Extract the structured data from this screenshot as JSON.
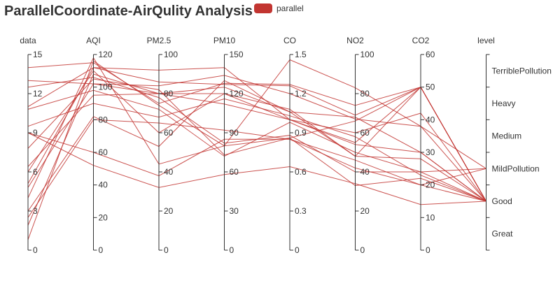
{
  "colors": {
    "series": "#c23531",
    "axis": "#333333",
    "text": "#333333"
  },
  "chart_data": {
    "type": "parallel",
    "title": "ParallelCoordinate-AirQulity Analysis",
    "legend": [
      "parallel"
    ],
    "legend_placement": "top",
    "axes": [
      {
        "name": "data",
        "type": "value",
        "min": 0,
        "max": 15,
        "ticks": [
          0,
          3,
          6,
          9,
          12,
          15
        ]
      },
      {
        "name": "AQI",
        "type": "value",
        "min": 0,
        "max": 120,
        "ticks": [
          0,
          20,
          40,
          60,
          80,
          100,
          120
        ]
      },
      {
        "name": "PM2.5",
        "type": "value",
        "min": 0,
        "max": 100,
        "ticks": [
          0,
          20,
          40,
          60,
          80,
          100
        ]
      },
      {
        "name": "PM10",
        "type": "value",
        "min": 0,
        "max": 150,
        "ticks": [
          0,
          30,
          60,
          90,
          120,
          150
        ]
      },
      {
        "name": "CO",
        "type": "value",
        "min": 0,
        "max": 1.5,
        "ticks": [
          0,
          0.3,
          0.6,
          0.9,
          1.2,
          1.5
        ]
      },
      {
        "name": "NO2",
        "type": "value",
        "min": 0,
        "max": 100,
        "ticks": [
          0,
          20,
          40,
          60,
          80,
          100
        ]
      },
      {
        "name": "CO2",
        "type": "value",
        "min": 0,
        "max": 60,
        "ticks": [
          0,
          10,
          20,
          30,
          40,
          50,
          60
        ]
      },
      {
        "name": "level",
        "type": "category",
        "categories": [
          "Great",
          "Good",
          "MildPollution",
          "Medium",
          "Heavy",
          "TerriblePollution"
        ]
      }
    ],
    "series": [
      {
        "values": [
          14,
          115,
          75,
          128,
          1.27,
          74,
          50,
          "Good"
        ]
      },
      {
        "values": [
          12.5,
          106,
          78,
          82,
          0.88,
          40,
          24,
          "Good"
        ]
      },
      {
        "values": [
          7.8,
          105,
          82,
          73,
          0.86,
          33,
          22,
          "Good"
        ]
      },
      {
        "values": [
          10.8,
          98,
          72,
          72,
          0.98,
          50,
          24,
          "MildPollution"
        ]
      },
      {
        "values": [
          3,
          82,
          53,
          130,
          1.06,
          48,
          28,
          "Good"
        ]
      },
      {
        "values": [
          6.4,
          95,
          80,
          125,
          1.06,
          68,
          30,
          "Good"
        ]
      },
      {
        "values": [
          5.1,
          112,
          86,
          127,
          1.26,
          69,
          50,
          "Good"
        ]
      },
      {
        "values": [
          9.5,
          90,
          68,
          116,
          1.03,
          58,
          23,
          "Good"
        ]
      },
      {
        "values": [
          1.9,
          108,
          80,
          112,
          1.0,
          54,
          30,
          "Good"
        ]
      },
      {
        "values": [
          0.8,
          116,
          74,
          80,
          0.86,
          66,
          50,
          "Good"
        ]
      },
      {
        "values": [
          4.8,
          102,
          80,
          120,
          1.08,
          48,
          50,
          "Good"
        ]
      },
      {
        "values": [
          11,
          112,
          92,
          140,
          1.0,
          55,
          50,
          "Good"
        ]
      },
      {
        "values": [
          13,
          102,
          84,
          134,
          1.2,
          67,
          38,
          "MildPollution"
        ]
      },
      {
        "values": [
          9,
          52,
          32,
          58,
          0.64,
          34,
          14,
          "Good"
        ]
      },
      {
        "values": [
          4,
          118,
          44,
          80,
          1.46,
          83,
          38,
          "Good"
        ]
      },
      {
        "values": [
          6,
          110,
          60,
          120,
          1.0,
          60,
          42,
          "Good"
        ]
      },
      {
        "values": [
          9,
          60,
          38,
          85,
          0.85,
          46,
          20,
          "MildPollution"
        ]
      },
      {
        "values": [
          2.5,
          80,
          65,
          92,
          0.85,
          42,
          20,
          "Good"
        ]
      }
    ]
  }
}
